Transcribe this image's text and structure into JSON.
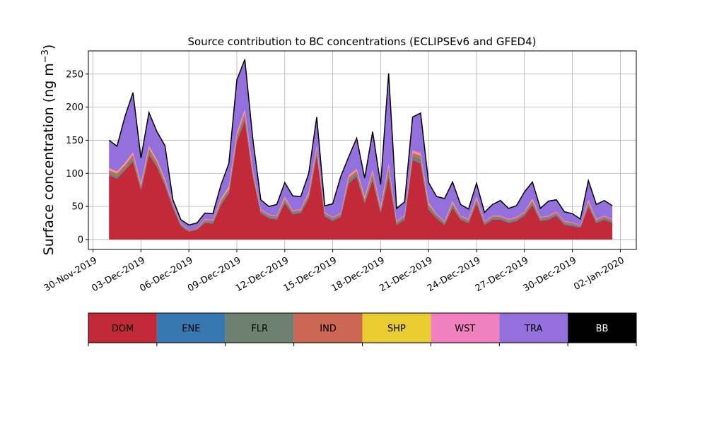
{
  "chart_data": {
    "type": "area",
    "stacked": true,
    "title": "Source contribution to BC concentrations (ECLIPSEv6 and GFED4)",
    "ylabel": "Surface concentration (ng m",
    "ylabel_sup": "−3",
    "ylabel_close": ")",
    "xlim": [
      "2019-11-29T17:00",
      "2020-01-03T00:00"
    ],
    "ylim": [
      -15,
      285
    ],
    "yticks": [
      0,
      50,
      100,
      150,
      200,
      250
    ],
    "xticks": [
      {
        "date": "2019-11-30",
        "label": "30-Nov-2019"
      },
      {
        "date": "2019-12-03",
        "label": "03-Dec-2019"
      },
      {
        "date": "2019-12-06",
        "label": "06-Dec-2019"
      },
      {
        "date": "2019-12-09",
        "label": "09-Dec-2019"
      },
      {
        "date": "2019-12-12",
        "label": "12-Dec-2019"
      },
      {
        "date": "2019-12-15",
        "label": "15-Dec-2019"
      },
      {
        "date": "2019-12-18",
        "label": "18-Dec-2019"
      },
      {
        "date": "2019-12-21",
        "label": "21-Dec-2019"
      },
      {
        "date": "2019-12-24",
        "label": "24-Dec-2019"
      },
      {
        "date": "2019-12-27",
        "label": "27-Dec-2019"
      },
      {
        "date": "2019-12-30",
        "label": "30-Dec-2019"
      },
      {
        "date": "2020-01-02",
        "label": "02-Jan-2020"
      }
    ],
    "grid": true,
    "x": [
      "2019-12-01T00:00",
      "2019-12-01T12:00",
      "2019-12-02T00:00",
      "2019-12-02T12:00",
      "2019-12-03T00:00",
      "2019-12-03T12:00",
      "2019-12-04T00:00",
      "2019-12-04T12:00",
      "2019-12-05T00:00",
      "2019-12-05T12:00",
      "2019-12-06T00:00",
      "2019-12-06T12:00",
      "2019-12-07T00:00",
      "2019-12-07T12:00",
      "2019-12-08T00:00",
      "2019-12-08T12:00",
      "2019-12-09T00:00",
      "2019-12-09T12:00",
      "2019-12-10T00:00",
      "2019-12-10T12:00",
      "2019-12-11T00:00",
      "2019-12-11T12:00",
      "2019-12-12T00:00",
      "2019-12-12T12:00",
      "2019-12-13T00:00",
      "2019-12-13T12:00",
      "2019-12-14T00:00",
      "2019-12-14T12:00",
      "2019-12-15T00:00",
      "2019-12-15T12:00",
      "2019-12-16T00:00",
      "2019-12-16T12:00",
      "2019-12-17T00:00",
      "2019-12-17T12:00",
      "2019-12-18T00:00",
      "2019-12-18T12:00",
      "2019-12-19T00:00",
      "2019-12-19T12:00",
      "2019-12-20T00:00",
      "2019-12-20T12:00",
      "2019-12-21T00:00",
      "2019-12-21T12:00",
      "2019-12-22T00:00",
      "2019-12-22T12:00",
      "2019-12-23T00:00",
      "2019-12-23T12:00",
      "2019-12-24T00:00",
      "2019-12-24T12:00",
      "2019-12-25T00:00",
      "2019-12-25T12:00",
      "2019-12-26T00:00",
      "2019-12-26T12:00",
      "2019-12-27T00:00",
      "2019-12-27T12:00",
      "2019-12-28T00:00",
      "2019-12-28T12:00",
      "2019-12-29T00:00",
      "2019-12-29T12:00",
      "2019-12-30T00:00",
      "2019-12-30T12:00",
      "2019-12-31T00:00",
      "2019-12-31T12:00",
      "2020-01-01T00:00",
      "2020-01-01T12:00"
    ],
    "series": [
      {
        "name": "DOM",
        "color": "#c22a3a",
        "values": [
          97,
          92,
          105,
          118,
          75,
          128,
          110,
          82,
          48,
          20,
          12,
          15,
          25,
          24,
          52,
          70,
          148,
          180,
          95,
          40,
          32,
          30,
          55,
          38,
          40,
          62,
          128,
          35,
          28,
          34,
          85,
          95,
          55,
          90,
          40,
          95,
          22,
          30,
          120,
          115,
          45,
          32,
          22,
          48,
          30,
          25,
          55,
          22,
          30,
          30,
          25,
          28,
          36,
          52,
          28,
          30,
          36,
          22,
          20,
          18,
          50,
          25,
          30,
          25
        ]
      },
      {
        "name": "ENE",
        "color": "#3878b0",
        "values": [
          1,
          1,
          1,
          1,
          1,
          1,
          1,
          1,
          1,
          1,
          0,
          0,
          1,
          1,
          1,
          1,
          1,
          1,
          1,
          1,
          1,
          1,
          1,
          1,
          1,
          1,
          1,
          1,
          1,
          1,
          1,
          1,
          1,
          1,
          1,
          1,
          1,
          1,
          1,
          1,
          1,
          1,
          1,
          1,
          1,
          1,
          1,
          1,
          1,
          1,
          1,
          1,
          1,
          1,
          1,
          1,
          1,
          1,
          1,
          1,
          1,
          1,
          1,
          1
        ]
      },
      {
        "name": "FLR",
        "color": "#6e8070",
        "values": [
          3,
          3,
          3,
          4,
          3,
          4,
          3,
          3,
          2,
          2,
          1,
          1,
          2,
          2,
          3,
          3,
          4,
          5,
          3,
          2,
          2,
          2,
          3,
          2,
          2,
          3,
          4,
          2,
          2,
          2,
          4,
          4,
          3,
          5,
          3,
          8,
          2,
          3,
          5,
          6,
          4,
          3,
          2,
          3,
          2,
          2,
          3,
          2,
          2,
          2,
          2,
          2,
          2,
          3,
          2,
          2,
          2,
          2,
          2,
          1,
          3,
          2,
          2,
          2
        ]
      },
      {
        "name": "IND",
        "color": "#cc6655",
        "values": [
          4,
          4,
          4,
          5,
          3,
          5,
          4,
          3,
          2,
          1,
          1,
          1,
          2,
          2,
          3,
          3,
          5,
          6,
          4,
          2,
          2,
          2,
          3,
          2,
          2,
          3,
          5,
          2,
          2,
          2,
          4,
          4,
          3,
          5,
          3,
          6,
          2,
          2,
          5,
          5,
          3,
          2,
          2,
          3,
          2,
          2,
          3,
          2,
          2,
          2,
          2,
          2,
          2,
          3,
          2,
          2,
          2,
          2,
          2,
          1,
          3,
          2,
          2,
          2
        ]
      },
      {
        "name": "SHP",
        "color": "#e8cc30",
        "values": [
          1,
          1,
          1,
          1,
          1,
          1,
          1,
          1,
          0,
          0,
          0,
          0,
          0,
          0,
          1,
          1,
          1,
          1,
          1,
          0,
          0,
          0,
          1,
          0,
          0,
          1,
          1,
          0,
          0,
          0,
          1,
          1,
          1,
          1,
          1,
          1,
          0,
          0,
          1,
          1,
          1,
          0,
          0,
          1,
          0,
          0,
          1,
          0,
          0,
          0,
          0,
          0,
          0,
          1,
          0,
          0,
          0,
          0,
          0,
          0,
          1,
          0,
          0,
          0
        ]
      },
      {
        "name": "WST",
        "color": "#f080c0",
        "values": [
          2,
          2,
          2,
          3,
          2,
          3,
          2,
          2,
          1,
          1,
          0,
          0,
          1,
          1,
          2,
          2,
          3,
          4,
          2,
          1,
          1,
          1,
          2,
          1,
          1,
          2,
          3,
          1,
          1,
          1,
          2,
          2,
          2,
          3,
          2,
          4,
          1,
          1,
          3,
          3,
          2,
          1,
          1,
          2,
          1,
          1,
          2,
          1,
          1,
          1,
          1,
          1,
          1,
          2,
          1,
          1,
          1,
          1,
          1,
          0,
          2,
          1,
          1,
          1
        ]
      },
      {
        "name": "TRA",
        "color": "#9370db",
        "values": [
          42,
          38,
          70,
          90,
          38,
          50,
          42,
          50,
          6,
          5,
          8,
          8,
          9,
          9,
          20,
          35,
          79,
          75,
          46,
          14,
          12,
          17,
          21,
          22,
          19,
          28,
          43,
          10,
          20,
          55,
          28,
          46,
          28,
          58,
          33,
          136,
          19,
          20,
          50,
          60,
          30,
          26,
          34,
          29,
          17,
          15,
          20,
          13,
          17,
          23,
          16,
          17,
          30,
          25,
          13,
          22,
          18,
          14,
          13,
          10,
          29,
          22,
          23,
          20
        ]
      },
      {
        "name": "BB",
        "color": "#000000",
        "values": [
          0,
          0,
          0,
          0,
          0,
          0,
          0,
          0,
          0,
          0,
          0,
          0,
          0,
          0,
          0,
          0,
          0,
          0,
          0,
          0,
          0,
          0,
          0,
          0,
          0,
          0,
          0,
          0,
          0,
          0,
          0,
          0,
          0,
          0,
          0,
          0,
          0,
          0,
          0,
          0,
          0,
          0,
          0,
          0,
          0,
          0,
          0,
          0,
          0,
          0,
          0,
          0,
          0,
          0,
          0,
          0,
          0,
          0,
          0,
          0,
          0,
          0,
          0,
          0
        ]
      }
    ],
    "legend": [
      "DOM",
      "ENE",
      "FLR",
      "IND",
      "SHP",
      "WST",
      "TRA",
      "BB"
    ]
  }
}
